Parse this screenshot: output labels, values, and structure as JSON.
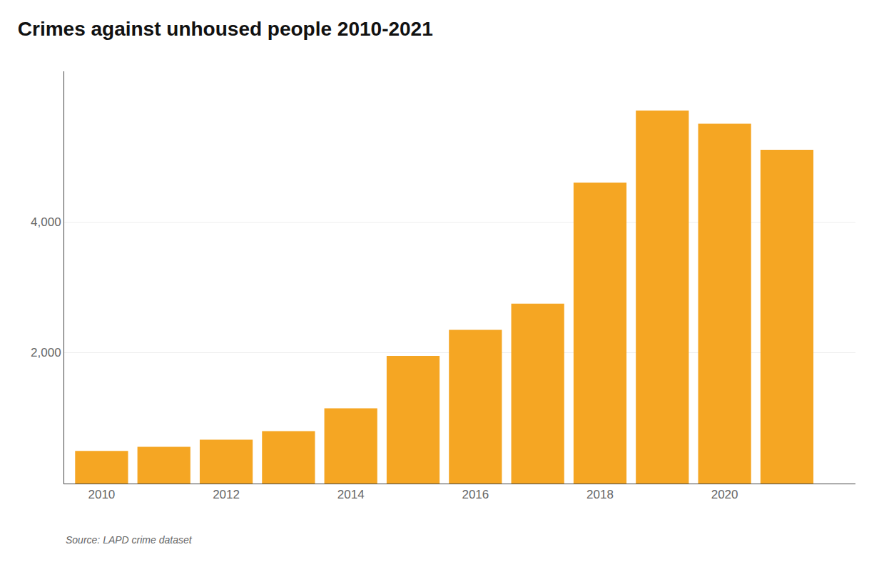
{
  "chart_data": {
    "type": "bar",
    "title": "Crimes against unhoused people 2010-2021",
    "x": [
      2010,
      2011,
      2012,
      2013,
      2014,
      2015,
      2016,
      2017,
      2018,
      2019,
      2020,
      2021
    ],
    "values": [
      500,
      560,
      670,
      800,
      1150,
      1950,
      2350,
      2750,
      4600,
      5700,
      5500,
      5100
    ],
    "color": "#F5A623",
    "xlim": [
      2009.4,
      2022.1
    ],
    "xticks": [
      2010,
      2012,
      2014,
      2016,
      2018,
      2020
    ],
    "ylim": [
      0,
      6300
    ],
    "yticks": [
      {
        "value": 2000,
        "label": "2,000"
      },
      {
        "value": 4000,
        "label": "4,000"
      }
    ],
    "grid": true,
    "annotations": [
      "Source: LAPD crime dataset"
    ]
  }
}
